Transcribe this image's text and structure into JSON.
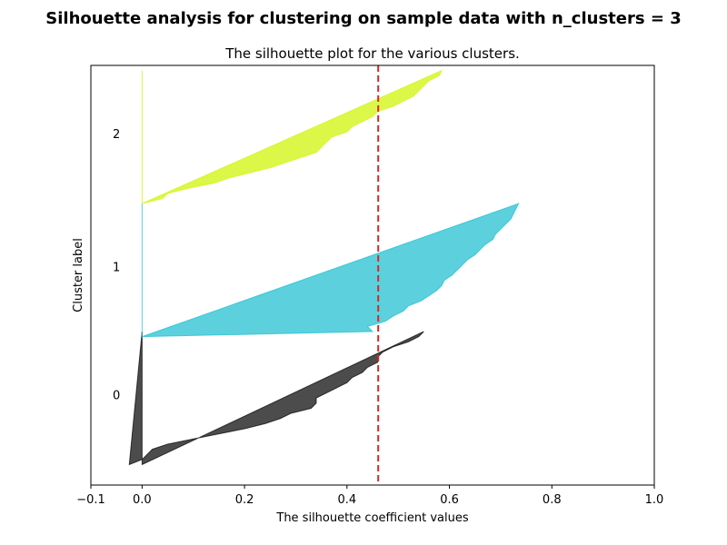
{
  "chart_data": {
    "type": "area",
    "suptitle": "Silhouette analysis for clustering on sample data with n_clusters = 3",
    "title": "The silhouette plot for the various clusters.",
    "xlabel": "The silhouette coefficient values",
    "ylabel": "Cluster label",
    "xlim": [
      -0.1,
      1.0
    ],
    "xticks": [
      -0.1,
      0.0,
      0.2,
      0.4,
      0.6,
      0.8,
      1.0
    ],
    "xtick_labels": [
      "−0.1",
      "0.0",
      "0.2",
      "0.4",
      "0.6",
      "0.8",
      "1.0"
    ],
    "ylim": [
      0,
      82
    ],
    "grid": false,
    "average_silhouette": {
      "value": 0.461,
      "color": "#d62728",
      "style": "dashed"
    },
    "series": [
      {
        "cluster_label": "0",
        "color": "#000000",
        "opacity": 0.7,
        "y_lower": 4,
        "values": [
          0.55,
          0.54,
          0.52,
          0.49,
          0.47,
          0.46,
          0.46,
          0.44,
          0.43,
          0.41,
          0.4,
          0.38,
          0.36,
          0.34,
          0.34,
          0.33,
          0.29,
          0.27,
          0.24,
          0.2,
          0.15,
          0.1,
          0.05,
          0.02,
          0.01,
          0.0,
          -0.025
        ]
      },
      {
        "cluster_label": "1",
        "color": "#17becf",
        "opacity": 0.7,
        "y_lower": 29,
        "values": [
          0.735,
          0.73,
          0.725,
          0.72,
          0.71,
          0.7,
          0.69,
          0.685,
          0.67,
          0.66,
          0.65,
          0.635,
          0.625,
          0.615,
          0.605,
          0.59,
          0.585,
          0.575,
          0.56,
          0.545,
          0.52,
          0.51,
          0.49,
          0.475,
          0.44,
          0.45,
          0.0
        ]
      },
      {
        "cluster_label": "2",
        "color": "#d4f51a",
        "opacity": 0.8,
        "y_lower": 55,
        "values": [
          0.585,
          0.58,
          0.56,
          0.55,
          0.54,
          0.53,
          0.51,
          0.49,
          0.46,
          0.45,
          0.43,
          0.41,
          0.4,
          0.37,
          0.36,
          0.35,
          0.34,
          0.31,
          0.28,
          0.25,
          0.21,
          0.17,
          0.14,
          0.09,
          0.05,
          0.04,
          0.0
        ]
      }
    ]
  }
}
